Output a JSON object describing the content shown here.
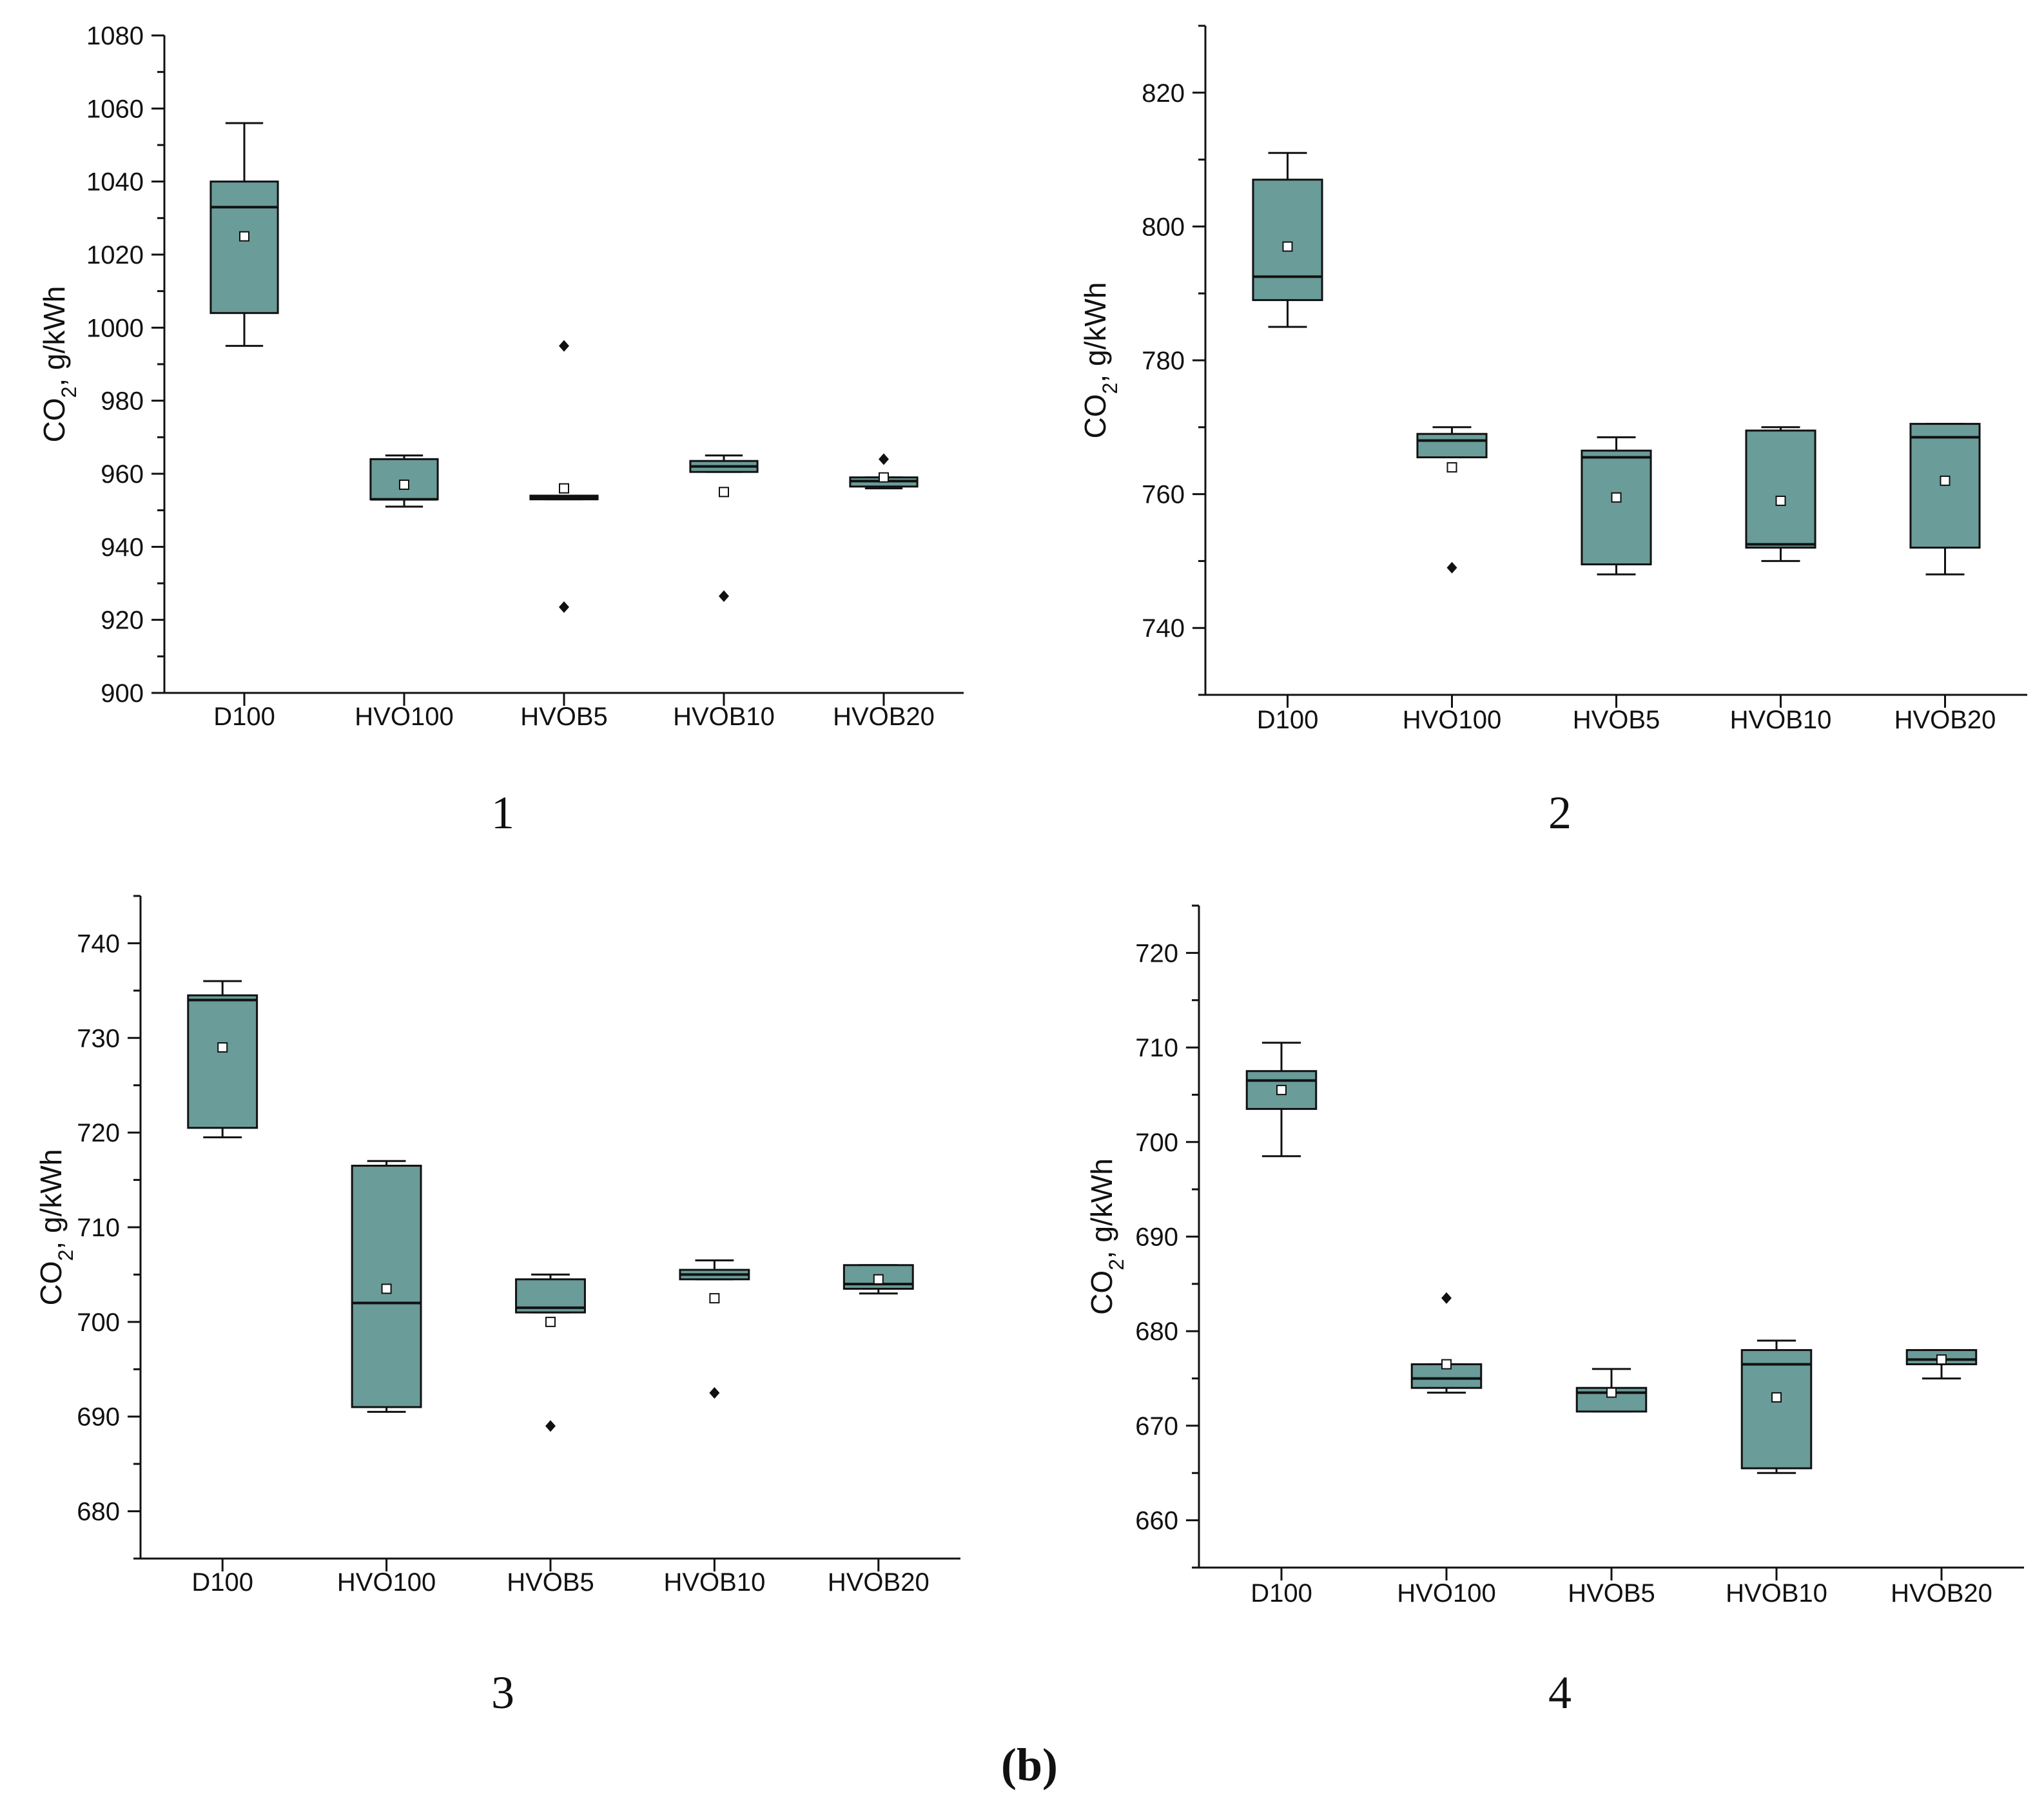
{
  "figure_label": "(b)",
  "colors": {
    "box_fill": "#6a9c99",
    "line": "#111111",
    "background": "#ffffff"
  },
  "chart_data": [
    {
      "type": "box",
      "panel_label": "1",
      "ylabel_main": "CO",
      "ylabel_sub": "2",
      "ylabel_rest": ", g/kWh",
      "ylim": [
        900,
        1080
      ],
      "major_step": 20,
      "minor_step": 10,
      "yticks": [
        "900",
        "920",
        "940",
        "960",
        "980",
        "1000",
        "1020",
        "1040",
        "1060",
        "1080"
      ],
      "categories": [
        "D100",
        "HVO100",
        "HVOB5",
        "HVOB10",
        "HVOB20"
      ],
      "boxes": [
        {
          "whisker_low": 995,
          "q1": 1004,
          "median": 1033,
          "q3": 1040,
          "whisker_high": 1056,
          "mean": 1025,
          "outliers": []
        },
        {
          "whisker_low": 951,
          "q1": 953,
          "median": 953,
          "q3": 964,
          "whisker_high": 965,
          "mean": 957,
          "outliers": []
        },
        {
          "whisker_low": 953,
          "q1": 953,
          "median": 953.5,
          "q3": 954,
          "whisker_high": 954,
          "mean": 956,
          "outliers": [
            995,
            923.5
          ]
        },
        {
          "whisker_low": 960.5,
          "q1": 960.5,
          "median": 962,
          "q3": 963.5,
          "whisker_high": 965,
          "mean": 955,
          "outliers": [
            926.5
          ]
        },
        {
          "whisker_low": 956,
          "q1": 956.5,
          "median": 958,
          "q3": 959,
          "whisker_high": 959,
          "mean": 959,
          "outliers": [
            964
          ]
        }
      ]
    },
    {
      "type": "box",
      "panel_label": "2",
      "ylabel_main": "CO",
      "ylabel_sub": "2",
      "ylabel_rest": ", g/kWh",
      "ylim": [
        730,
        830
      ],
      "major_step": 20,
      "minor_step": 10,
      "yticks": [
        "740",
        "760",
        "780",
        "800",
        "820"
      ],
      "categories": [
        "D100",
        "HVO100",
        "HVOB5",
        "HVOB10",
        "HVOB20"
      ],
      "boxes": [
        {
          "whisker_low": 785,
          "q1": 789,
          "median": 792.5,
          "q3": 807,
          "whisker_high": 811,
          "mean": 797,
          "outliers": []
        },
        {
          "whisker_low": 765.5,
          "q1": 765.5,
          "median": 768,
          "q3": 769,
          "whisker_high": 770,
          "mean": 764,
          "outliers": [
            749
          ]
        },
        {
          "whisker_low": 748,
          "q1": 749.5,
          "median": 765.5,
          "q3": 766.5,
          "whisker_high": 768.5,
          "mean": 759.5,
          "outliers": []
        },
        {
          "whisker_low": 750,
          "q1": 752,
          "median": 752.5,
          "q3": 769.5,
          "whisker_high": 770,
          "mean": 759,
          "outliers": []
        },
        {
          "whisker_low": 748,
          "q1": 752,
          "median": 768.5,
          "q3": 770.5,
          "whisker_high": 770.5,
          "mean": 762,
          "outliers": []
        }
      ]
    },
    {
      "type": "box",
      "panel_label": "3",
      "ylabel_main": "CO",
      "ylabel_sub": "2",
      "ylabel_rest": ", g/kWh",
      "ylim": [
        675,
        745
      ],
      "major_step": 10,
      "minor_step": 5,
      "yticks": [
        "680",
        "690",
        "700",
        "710",
        "720",
        "730",
        "740"
      ],
      "categories": [
        "D100",
        "HVO100",
        "HVOB5",
        "HVOB10",
        "HVOB20"
      ],
      "boxes": [
        {
          "whisker_low": 719.5,
          "q1": 720.5,
          "median": 734,
          "q3": 734.5,
          "whisker_high": 736,
          "mean": 729,
          "outliers": []
        },
        {
          "whisker_low": 690.5,
          "q1": 691,
          "median": 702,
          "q3": 716.5,
          "whisker_high": 717,
          "mean": 703.5,
          "outliers": []
        },
        {
          "whisker_low": 701,
          "q1": 701,
          "median": 701.5,
          "q3": 704.5,
          "whisker_high": 705,
          "mean": 700,
          "outliers": [
            689
          ]
        },
        {
          "whisker_low": 704.5,
          "q1": 704.5,
          "median": 705,
          "q3": 705.5,
          "whisker_high": 706.5,
          "mean": 702.5,
          "outliers": [
            692.5
          ]
        },
        {
          "whisker_low": 703,
          "q1": 703.5,
          "median": 704,
          "q3": 706,
          "whisker_high": 706,
          "mean": 704.5,
          "outliers": []
        }
      ]
    },
    {
      "type": "box",
      "panel_label": "4",
      "ylabel_main": "CO",
      "ylabel_sub": "2",
      "ylabel_rest": ", g/kWh",
      "ylim": [
        655,
        725
      ],
      "major_step": 10,
      "minor_step": 5,
      "yticks": [
        "660",
        "670",
        "680",
        "690",
        "700",
        "710",
        "720"
      ],
      "categories": [
        "D100",
        "HVO100",
        "HVOB5",
        "HVOB10",
        "HVOB20"
      ],
      "boxes": [
        {
          "whisker_low": 698.5,
          "q1": 703.5,
          "median": 706.5,
          "q3": 707.5,
          "whisker_high": 710.5,
          "mean": 705.5,
          "outliers": []
        },
        {
          "whisker_low": 673.5,
          "q1": 674,
          "median": 675,
          "q3": 676.5,
          "whisker_high": 676.5,
          "mean": 676.5,
          "outliers": [
            683.5
          ]
        },
        {
          "whisker_low": 671.5,
          "q1": 671.5,
          "median": 673.5,
          "q3": 674,
          "whisker_high": 676,
          "mean": 673.5,
          "outliers": []
        },
        {
          "whisker_low": 665,
          "q1": 665.5,
          "median": 676.5,
          "q3": 678,
          "whisker_high": 679,
          "mean": 673,
          "outliers": []
        },
        {
          "whisker_low": 675,
          "q1": 676.5,
          "median": 677,
          "q3": 678,
          "whisker_high": 678,
          "mean": 677,
          "outliers": []
        }
      ]
    }
  ]
}
